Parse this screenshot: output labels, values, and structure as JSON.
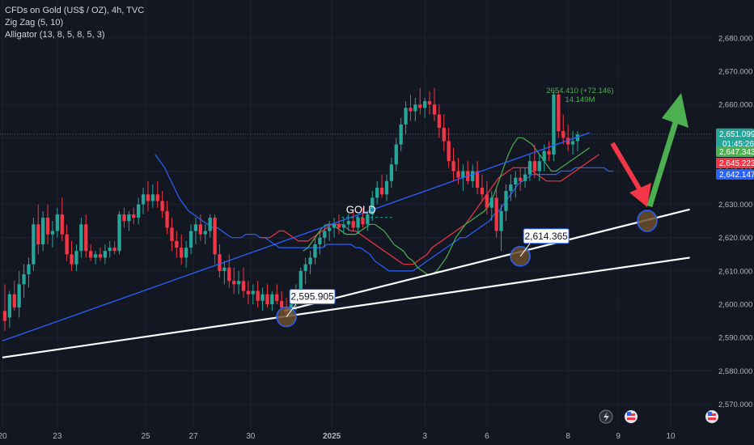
{
  "legend": {
    "symbol": "CFDs on Gold (US$ / OZ), 4h, TVC",
    "indicator_1": "Zig Zag (5, 10)",
    "indicator_2": "Alligator (13, 8, 5, 8, 5, 3)"
  },
  "chart_data": {
    "type": "candlestick",
    "symbol_label": "GOLD",
    "y_axis": {
      "ylim": [
        2565,
        2688
      ],
      "ticks": [
        "2,680.000",
        "2,670.000",
        "2,660.000",
        "2,650.000",
        "2,640.000",
        "2,630.000",
        "2,620.000",
        "2,610.000",
        "2,600.000",
        "2,590.000",
        "2,580.000",
        "2,570.000"
      ],
      "tick_values": [
        2680,
        2670,
        2660,
        2650,
        2640,
        2630,
        2620,
        2610,
        2600,
        2590,
        2580,
        2570
      ]
    },
    "x_axis": {
      "ticks": [
        "20",
        "23",
        "25",
        "27",
        "30",
        "2025",
        "3",
        "6",
        "8",
        "9",
        "10"
      ],
      "tick_bar_index": [
        0,
        11.5,
        30,
        40,
        52,
        69,
        88.5,
        101.5,
        118.5,
        129,
        140
      ]
    },
    "price_tags": [
      {
        "label": "2,651.099",
        "sub": "01:45:26",
        "value": 2651.1,
        "color": "#26a69a"
      },
      {
        "label": "2,647.343",
        "value": 2647.34,
        "color": "#4caf50"
      },
      {
        "label": "2,645.223",
        "value": 2645.22,
        "color": "#f23645"
      },
      {
        "label": "2,642.147",
        "value": 2642.15,
        "color": "#2962ff"
      }
    ],
    "annotations": [
      {
        "label": "2,595.905",
        "bar": 59,
        "value": 2596.2
      },
      {
        "label": "2,614.365",
        "bar": 108,
        "value": 2614.4
      }
    ],
    "zigzag_label": {
      "line1": "2654.410 (+72.146)",
      "line2": "14.149M"
    },
    "candles": [
      {
        "o": 2598,
        "h": 2606,
        "l": 2592,
        "c": 2595
      },
      {
        "o": 2596,
        "h": 2604,
        "l": 2593,
        "c": 2603
      },
      {
        "o": 2603,
        "h": 2607,
        "l": 2598,
        "c": 2599
      },
      {
        "o": 2599,
        "h": 2610,
        "l": 2596,
        "c": 2606
      },
      {
        "o": 2606,
        "h": 2612,
        "l": 2602,
        "c": 2609
      },
      {
        "o": 2609,
        "h": 2614,
        "l": 2605,
        "c": 2612
      },
      {
        "o": 2612,
        "h": 2626,
        "l": 2610,
        "c": 2624
      },
      {
        "o": 2624,
        "h": 2630,
        "l": 2615,
        "c": 2618
      },
      {
        "o": 2618,
        "h": 2628,
        "l": 2616,
        "c": 2626
      },
      {
        "o": 2626,
        "h": 2630,
        "l": 2618,
        "c": 2621
      },
      {
        "o": 2621,
        "h": 2625,
        "l": 2617,
        "c": 2622
      },
      {
        "o": 2622,
        "h": 2629,
        "l": 2620,
        "c": 2627
      },
      {
        "o": 2627,
        "h": 2632,
        "l": 2619,
        "c": 2621
      },
      {
        "o": 2621,
        "h": 2624,
        "l": 2613,
        "c": 2615
      },
      {
        "o": 2615,
        "h": 2619,
        "l": 2610,
        "c": 2612
      },
      {
        "o": 2612,
        "h": 2618,
        "l": 2610,
        "c": 2616
      },
      {
        "o": 2616,
        "h": 2626,
        "l": 2614,
        "c": 2624
      },
      {
        "o": 2624,
        "h": 2627,
        "l": 2614,
        "c": 2616
      },
      {
        "o": 2616,
        "h": 2618,
        "l": 2613,
        "c": 2614
      },
      {
        "o": 2614,
        "h": 2616,
        "l": 2612,
        "c": 2615
      },
      {
        "o": 2615,
        "h": 2617,
        "l": 2613,
        "c": 2614
      },
      {
        "o": 2614,
        "h": 2618,
        "l": 2612,
        "c": 2616
      },
      {
        "o": 2616,
        "h": 2619,
        "l": 2614,
        "c": 2617
      },
      {
        "o": 2617,
        "h": 2619,
        "l": 2615,
        "c": 2616
      },
      {
        "o": 2616,
        "h": 2628,
        "l": 2615,
        "c": 2627
      },
      {
        "o": 2627,
        "h": 2629,
        "l": 2623,
        "c": 2625
      },
      {
        "o": 2625,
        "h": 2628,
        "l": 2622,
        "c": 2627
      },
      {
        "o": 2627,
        "h": 2629,
        "l": 2624,
        "c": 2626
      },
      {
        "o": 2626,
        "h": 2632,
        "l": 2624,
        "c": 2630
      },
      {
        "o": 2630,
        "h": 2635,
        "l": 2627,
        "c": 2633
      },
      {
        "o": 2633,
        "h": 2637,
        "l": 2628,
        "c": 2631
      },
      {
        "o": 2631,
        "h": 2636,
        "l": 2629,
        "c": 2633
      },
      {
        "o": 2633,
        "h": 2637,
        "l": 2629,
        "c": 2631
      },
      {
        "o": 2631,
        "h": 2634,
        "l": 2626,
        "c": 2628
      },
      {
        "o": 2628,
        "h": 2631,
        "l": 2621,
        "c": 2623
      },
      {
        "o": 2623,
        "h": 2626,
        "l": 2616,
        "c": 2619
      },
      {
        "o": 2619,
        "h": 2622,
        "l": 2614,
        "c": 2617
      },
      {
        "o": 2617,
        "h": 2621,
        "l": 2612,
        "c": 2614
      },
      {
        "o": 2614,
        "h": 2619,
        "l": 2611,
        "c": 2617
      },
      {
        "o": 2617,
        "h": 2624,
        "l": 2615,
        "c": 2622
      },
      {
        "o": 2622,
        "h": 2626,
        "l": 2618,
        "c": 2624
      },
      {
        "o": 2624,
        "h": 2627,
        "l": 2619,
        "c": 2621
      },
      {
        "o": 2621,
        "h": 2624,
        "l": 2618,
        "c": 2622
      },
      {
        "o": 2622,
        "h": 2627,
        "l": 2620,
        "c": 2626
      },
      {
        "o": 2626,
        "h": 2627,
        "l": 2612,
        "c": 2615
      },
      {
        "o": 2615,
        "h": 2618,
        "l": 2608,
        "c": 2610
      },
      {
        "o": 2610,
        "h": 2613,
        "l": 2606,
        "c": 2611
      },
      {
        "o": 2611,
        "h": 2615,
        "l": 2605,
        "c": 2607
      },
      {
        "o": 2607,
        "h": 2611,
        "l": 2603,
        "c": 2606
      },
      {
        "o": 2606,
        "h": 2610,
        "l": 2603,
        "c": 2607
      },
      {
        "o": 2607,
        "h": 2611,
        "l": 2602,
        "c": 2604
      },
      {
        "o": 2604,
        "h": 2607,
        "l": 2600,
        "c": 2603
      },
      {
        "o": 2603,
        "h": 2606,
        "l": 2600,
        "c": 2604
      },
      {
        "o": 2604,
        "h": 2607,
        "l": 2599,
        "c": 2601
      },
      {
        "o": 2601,
        "h": 2605,
        "l": 2598,
        "c": 2603
      },
      {
        "o": 2603,
        "h": 2606,
        "l": 2599,
        "c": 2600
      },
      {
        "o": 2600,
        "h": 2604,
        "l": 2598,
        "c": 2603
      },
      {
        "o": 2603,
        "h": 2606,
        "l": 2600,
        "c": 2601
      },
      {
        "o": 2601,
        "h": 2604,
        "l": 2597,
        "c": 2599
      },
      {
        "o": 2599,
        "h": 2602,
        "l": 2596,
        "c": 2597
      },
      {
        "o": 2597,
        "h": 2601,
        "l": 2596,
        "c": 2600
      },
      {
        "o": 2600,
        "h": 2606,
        "l": 2598,
        "c": 2604
      },
      {
        "o": 2604,
        "h": 2611,
        "l": 2601,
        "c": 2610
      },
      {
        "o": 2610,
        "h": 2614,
        "l": 2606,
        "c": 2612
      },
      {
        "o": 2612,
        "h": 2616,
        "l": 2609,
        "c": 2614
      },
      {
        "o": 2614,
        "h": 2620,
        "l": 2612,
        "c": 2618
      },
      {
        "o": 2618,
        "h": 2622,
        "l": 2615,
        "c": 2620
      },
      {
        "o": 2620,
        "h": 2624,
        "l": 2617,
        "c": 2622
      },
      {
        "o": 2622,
        "h": 2625,
        "l": 2619,
        "c": 2623
      },
      {
        "o": 2623,
        "h": 2626,
        "l": 2620,
        "c": 2624
      },
      {
        "o": 2624,
        "h": 2627,
        "l": 2621,
        "c": 2623
      },
      {
        "o": 2623,
        "h": 2626,
        "l": 2621,
        "c": 2624
      },
      {
        "o": 2624,
        "h": 2627,
        "l": 2622,
        "c": 2625
      },
      {
        "o": 2625,
        "h": 2628,
        "l": 2622,
        "c": 2623
      },
      {
        "o": 2623,
        "h": 2627,
        "l": 2621,
        "c": 2626
      },
      {
        "o": 2626,
        "h": 2629,
        "l": 2623,
        "c": 2624
      },
      {
        "o": 2624,
        "h": 2628,
        "l": 2622,
        "c": 2627
      },
      {
        "o": 2627,
        "h": 2634,
        "l": 2625,
        "c": 2632
      },
      {
        "o": 2632,
        "h": 2637,
        "l": 2630,
        "c": 2635
      },
      {
        "o": 2635,
        "h": 2639,
        "l": 2632,
        "c": 2633
      },
      {
        "o": 2633,
        "h": 2639,
        "l": 2631,
        "c": 2637
      },
      {
        "o": 2637,
        "h": 2644,
        "l": 2635,
        "c": 2642
      },
      {
        "o": 2642,
        "h": 2650,
        "l": 2640,
        "c": 2648
      },
      {
        "o": 2648,
        "h": 2656,
        "l": 2646,
        "c": 2654
      },
      {
        "o": 2654,
        "h": 2661,
        "l": 2651,
        "c": 2659
      },
      {
        "o": 2659,
        "h": 2663,
        "l": 2655,
        "c": 2658
      },
      {
        "o": 2658,
        "h": 2662,
        "l": 2655,
        "c": 2660
      },
      {
        "o": 2660,
        "h": 2665,
        "l": 2657,
        "c": 2659
      },
      {
        "o": 2659,
        "h": 2662,
        "l": 2656,
        "c": 2661
      },
      {
        "o": 2661,
        "h": 2664,
        "l": 2657,
        "c": 2660
      },
      {
        "o": 2660,
        "h": 2665,
        "l": 2655,
        "c": 2657
      },
      {
        "o": 2657,
        "h": 2660,
        "l": 2650,
        "c": 2653
      },
      {
        "o": 2653,
        "h": 2657,
        "l": 2646,
        "c": 2649
      },
      {
        "o": 2649,
        "h": 2653,
        "l": 2641,
        "c": 2643
      },
      {
        "o": 2643,
        "h": 2647,
        "l": 2637,
        "c": 2640
      },
      {
        "o": 2640,
        "h": 2644,
        "l": 2636,
        "c": 2638
      },
      {
        "o": 2638,
        "h": 2642,
        "l": 2634,
        "c": 2640
      },
      {
        "o": 2640,
        "h": 2643,
        "l": 2636,
        "c": 2637
      },
      {
        "o": 2637,
        "h": 2642,
        "l": 2635,
        "c": 2640
      },
      {
        "o": 2640,
        "h": 2643,
        "l": 2633,
        "c": 2635
      },
      {
        "o": 2635,
        "h": 2639,
        "l": 2631,
        "c": 2633
      },
      {
        "o": 2633,
        "h": 2637,
        "l": 2627,
        "c": 2629
      },
      {
        "o": 2629,
        "h": 2634,
        "l": 2625,
        "c": 2632
      },
      {
        "o": 2632,
        "h": 2635,
        "l": 2620,
        "c": 2622
      },
      {
        "o": 2622,
        "h": 2630,
        "l": 2616,
        "c": 2628
      },
      {
        "o": 2628,
        "h": 2636,
        "l": 2625,
        "c": 2634
      },
      {
        "o": 2634,
        "h": 2639,
        "l": 2631,
        "c": 2636
      },
      {
        "o": 2636,
        "h": 2640,
        "l": 2632,
        "c": 2638
      },
      {
        "o": 2638,
        "h": 2641,
        "l": 2634,
        "c": 2637
      },
      {
        "o": 2637,
        "h": 2641,
        "l": 2635,
        "c": 2639
      },
      {
        "o": 2639,
        "h": 2645,
        "l": 2637,
        "c": 2643
      },
      {
        "o": 2643,
        "h": 2648,
        "l": 2638,
        "c": 2640
      },
      {
        "o": 2640,
        "h": 2645,
        "l": 2637,
        "c": 2643
      },
      {
        "o": 2643,
        "h": 2648,
        "l": 2640,
        "c": 2646
      },
      {
        "o": 2646,
        "h": 2649,
        "l": 2643,
        "c": 2645
      },
      {
        "o": 2645,
        "h": 2664,
        "l": 2643,
        "c": 2663
      },
      {
        "o": 2663,
        "h": 2664,
        "l": 2650,
        "c": 2652
      },
      {
        "o": 2652,
        "h": 2657,
        "l": 2648,
        "c": 2650
      },
      {
        "o": 2650,
        "h": 2654,
        "l": 2646,
        "c": 2648
      },
      {
        "o": 2648,
        "h": 2652,
        "l": 2645,
        "c": 2649
      },
      {
        "o": 2649,
        "h": 2652,
        "l": 2646,
        "c": 2651
      }
    ],
    "alligator": {
      "jaw": [
        2645,
        2643,
        2641,
        2638,
        2635,
        2632,
        2630,
        2628,
        2627,
        2626,
        2625,
        2624,
        2623,
        2623,
        2622,
        2621,
        2620,
        2620,
        2620,
        2621,
        2621,
        2621,
        2620,
        2620,
        2619,
        2618,
        2617,
        2617,
        2617,
        2617,
        2617,
        2617,
        2617,
        2617,
        2617,
        2617,
        2618,
        2618,
        2618,
        2618,
        2618,
        2618,
        2617,
        2617,
        2616,
        2615,
        2613,
        2612,
        2611,
        2610,
        2610,
        2610,
        2610,
        2610,
        2610,
        2611,
        2612,
        2613,
        2614,
        2615,
        2616,
        2617,
        2618,
        2619,
        2620,
        2620,
        2621,
        2622,
        2623,
        2624,
        2625,
        2627,
        2628,
        2630,
        2632,
        2634,
        2636,
        2637,
        2638,
        2639,
        2639,
        2639,
        2639,
        2639,
        2639,
        2640,
        2640,
        2640,
        2641,
        2641,
        2641,
        2641,
        2641,
        2641,
        2641,
        2640,
        2640
      ],
      "teeth": [
        2620,
        2620,
        2620,
        2621,
        2622,
        2622,
        2621,
        2620,
        2619,
        2619,
        2619,
        2620,
        2621,
        2622,
        2623,
        2624,
        2624,
        2624,
        2623,
        2622,
        2622,
        2621,
        2620,
        2619,
        2618,
        2617,
        2616,
        2615,
        2614,
        2613,
        2612,
        2612,
        2612,
        2613,
        2614,
        2615,
        2617,
        2618,
        2619,
        2620,
        2621,
        2622,
        2623,
        2624,
        2626,
        2628,
        2630,
        2632,
        2634,
        2636,
        2638,
        2639,
        2640,
        2641,
        2641,
        2641,
        2641,
        2640,
        2639,
        2638,
        2637,
        2637,
        2637,
        2637,
        2638,
        2639,
        2640,
        2641,
        2642,
        2643,
        2644,
        2645
      ],
      "lips": [
        2616,
        2617,
        2619,
        2621,
        2623,
        2624,
        2624,
        2623,
        2622,
        2621,
        2621,
        2621,
        2622,
        2623,
        2624,
        2624,
        2623,
        2622,
        2620,
        2618,
        2617,
        2616,
        2614,
        2613,
        2611,
        2610,
        2609,
        2609,
        2610,
        2612,
        2614,
        2617,
        2620,
        2622,
        2624,
        2625,
        2626,
        2627,
        2628,
        2630,
        2633,
        2637,
        2641,
        2645,
        2648,
        2650,
        2650,
        2649,
        2648,
        2646,
        2644,
        2642,
        2640,
        2640,
        2641,
        2642,
        2643,
        2644,
        2645,
        2646,
        2647
      ]
    },
    "trendlines": [
      {
        "name": "",
        "color": "#2962ff",
        "p1": [
          0,
          2589
        ],
        "p2": [
          123,
          2651.5
        ]
      },
      {
        "name": "",
        "color": "#ffffff",
        "p1": [
          0,
          2584
        ],
        "p2": [
          144,
          2614
        ]
      },
      {
        "name": "",
        "color": "#ffffff",
        "p1": [
          59,
          2598
        ],
        "p2": [
          144,
          2628.5
        ]
      }
    ]
  }
}
